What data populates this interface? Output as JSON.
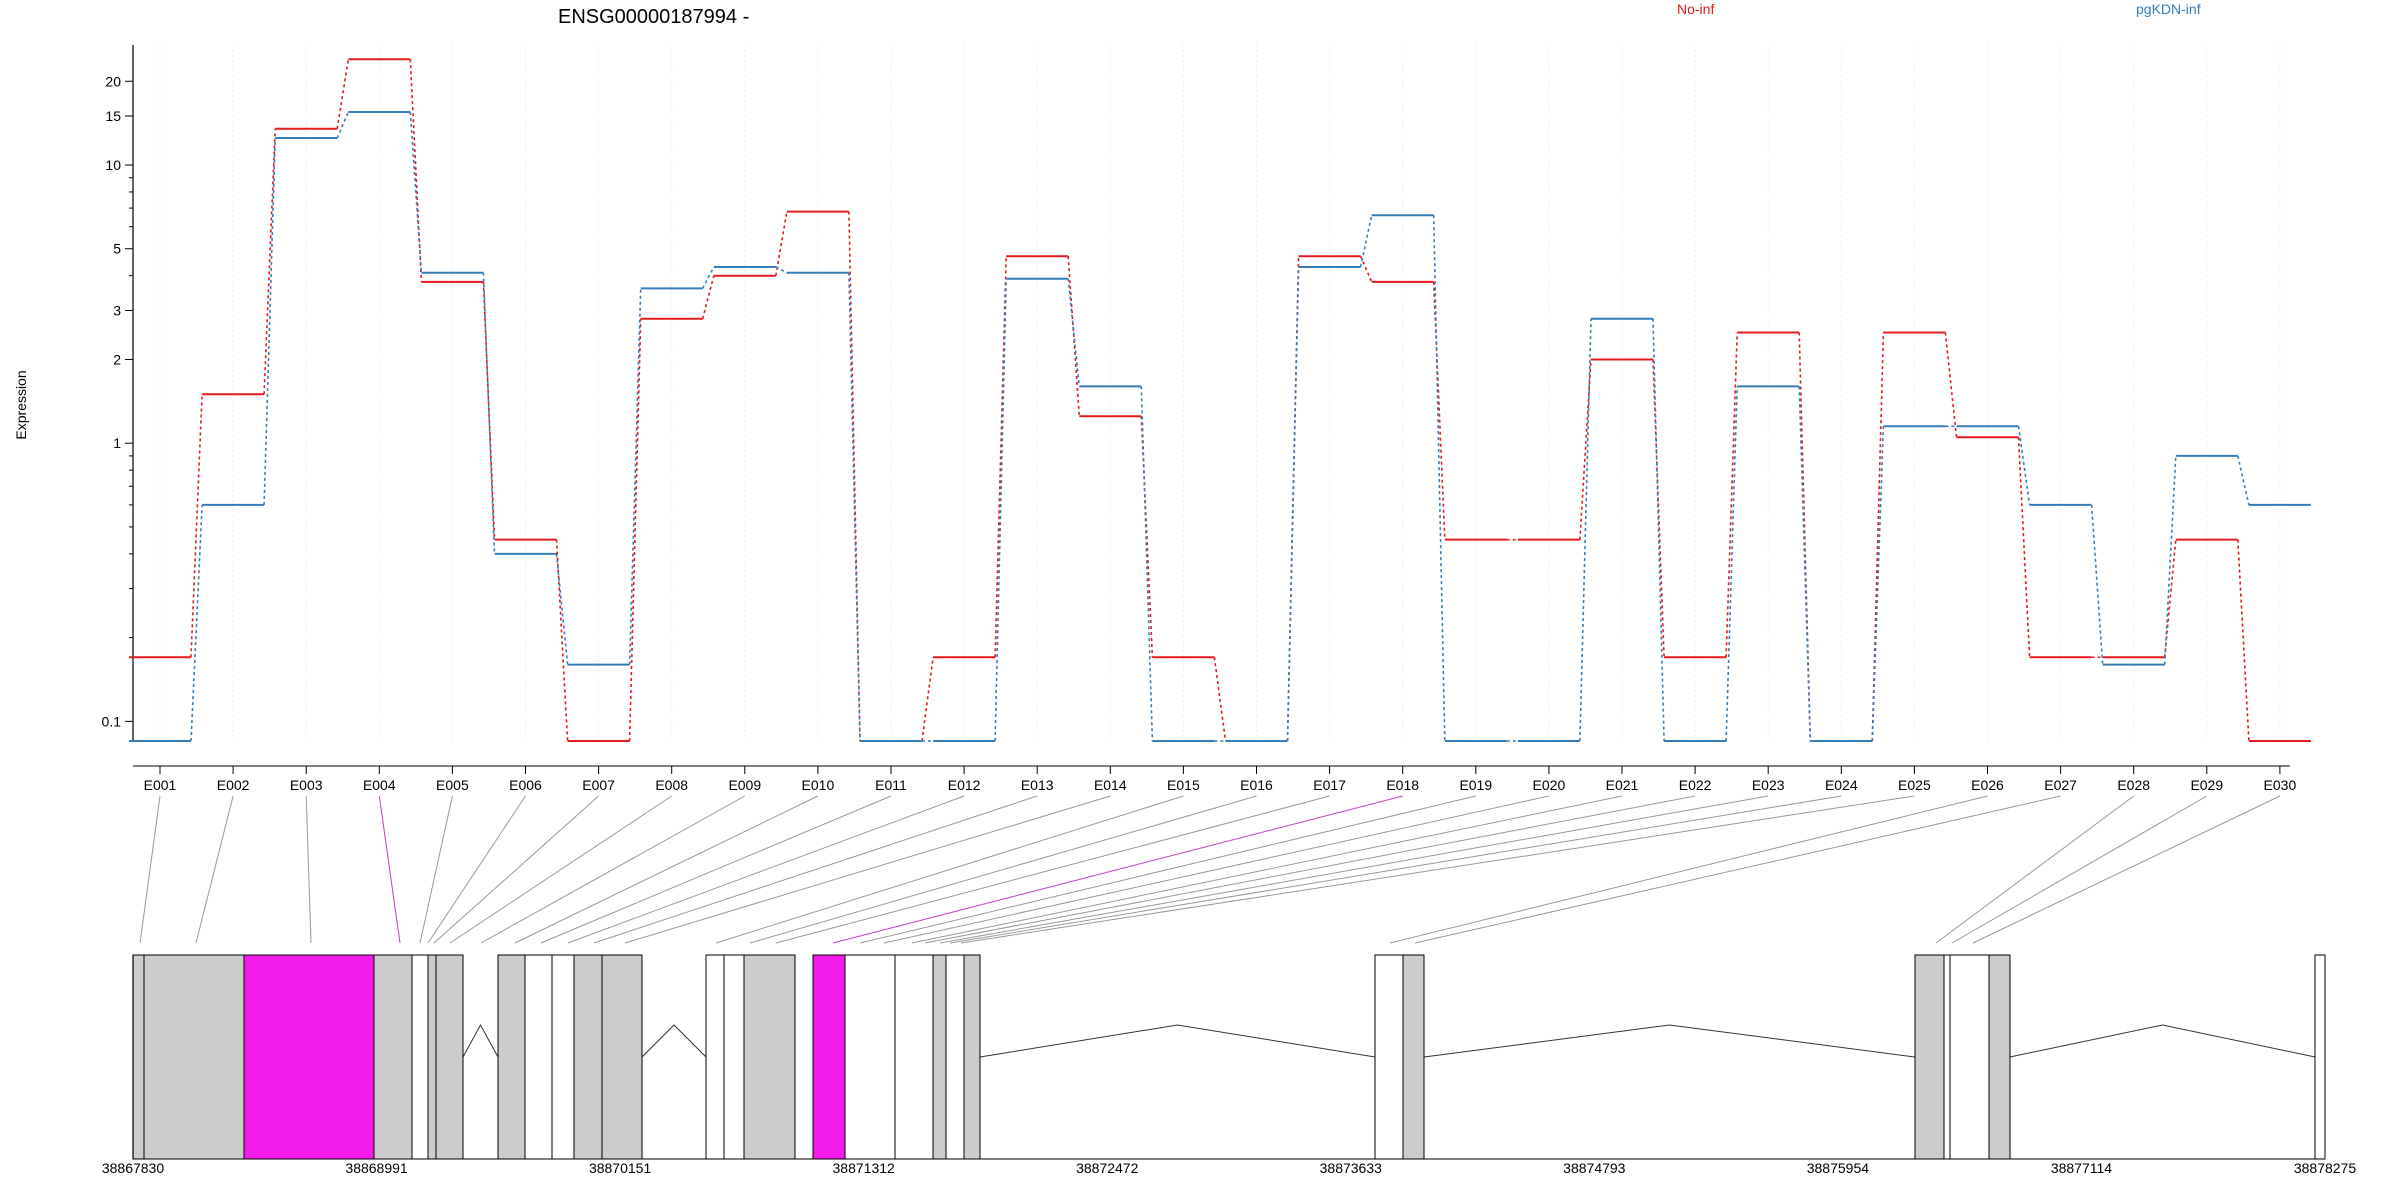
{
  "chart_data": {
    "type": "line",
    "title": "ENSG00000187994 -",
    "ylabel": "Expression",
    "xlabel": "",
    "yscale": "log",
    "ylim": [
      0.085,
      27
    ],
    "yticks": [
      0.1,
      1,
      2,
      3,
      5,
      10,
      15,
      20
    ],
    "ytick_labels": [
      "0.1",
      "1",
      "2",
      "3",
      "5",
      "10",
      "15",
      "20"
    ],
    "grid": "vertical dotted at exon centers",
    "legend_position": "top",
    "categories": [
      "E001",
      "E002",
      "E003",
      "E004",
      "E005",
      "E006",
      "E007",
      "E008",
      "E009",
      "E010",
      "E011",
      "E012",
      "E013",
      "E014",
      "E015",
      "E016",
      "E017",
      "E018",
      "E019",
      "E020",
      "E021",
      "E022",
      "E023",
      "E024",
      "E025",
      "E026",
      "E027",
      "E028",
      "E029",
      "E030"
    ],
    "series": [
      {
        "name": "No-inf",
        "color": "#e41a1c",
        "values": [
          0.17,
          1.5,
          13.5,
          24,
          3.8,
          0.45,
          0.085,
          2.8,
          4.0,
          6.8,
          0.085,
          0.17,
          4.7,
          1.25,
          0.17,
          0.085,
          4.7,
          3.8,
          0.45,
          0.45,
          2.0,
          0.17,
          2.5,
          0.085,
          2.5,
          1.05,
          0.17,
          0.17,
          0.45,
          0.085
        ]
      },
      {
        "name": "pgKDN-inf",
        "color": "#377eb8",
        "values": [
          0.085,
          0.6,
          12.5,
          15.5,
          4.1,
          0.4,
          0.16,
          3.6,
          4.3,
          4.1,
          0.085,
          0.085,
          3.9,
          1.6,
          0.085,
          0.085,
          4.3,
          6.6,
          0.085,
          0.085,
          2.8,
          0.085,
          1.6,
          0.085,
          1.15,
          1.15,
          0.6,
          0.16,
          0.9,
          0.6
        ]
      }
    ],
    "highlighted_exons": [
      "E004",
      "E018"
    ],
    "gene_model": {
      "coordinate_labels": [
        "38867830",
        "38868991",
        "38870151",
        "38871312",
        "38872472",
        "38873633",
        "38874793",
        "38875954",
        "38877114",
        "38878275"
      ],
      "exon_fill": "#cccccc",
      "highlight_fill": "#f21bea",
      "intron_color": "#333333",
      "connector_color": "#999999"
    }
  }
}
